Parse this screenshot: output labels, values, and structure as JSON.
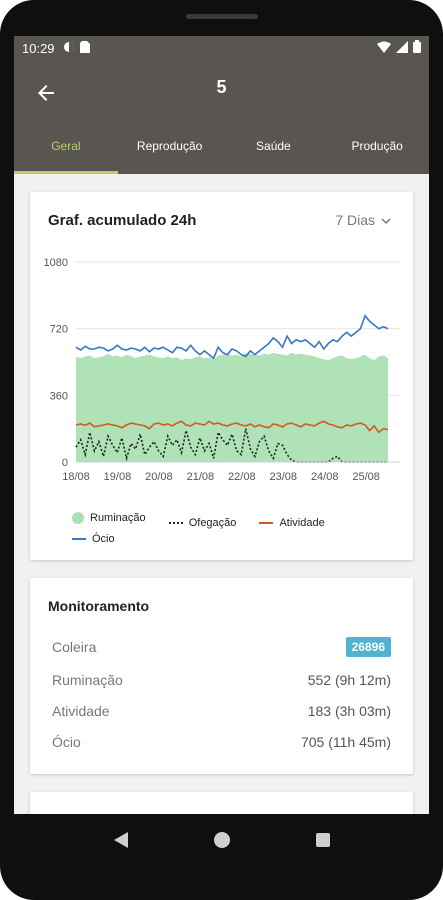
{
  "status_bar": {
    "time": "10:29"
  },
  "app_bar": {
    "title": "5"
  },
  "tabs": [
    {
      "label": "Geral",
      "active": true
    },
    {
      "label": "Reprodução",
      "active": false
    },
    {
      "label": "Saúde",
      "active": false
    },
    {
      "label": "Produção",
      "active": false
    }
  ],
  "chart_card": {
    "title": "Graf. acumulado 24h",
    "period": "7 Dias"
  },
  "chart_data": {
    "type": "area",
    "title": "Graf. acumulado 24h",
    "ylim": [
      0,
      1080
    ],
    "yticks": [
      "1080",
      "720",
      "360",
      "0"
    ],
    "xticks": [
      "18/08",
      "19/08",
      "20/08",
      "21/08",
      "22/08",
      "23/08",
      "24/08",
      "25/08"
    ],
    "grid": true,
    "legend_position": "bottom",
    "series": [
      {
        "name": "Ruminação",
        "style": "area",
        "color": "#abe0b3",
        "values": [
          570,
          560,
          570,
          575,
          560,
          565,
          570,
          585,
          570,
          575,
          565,
          580,
          570,
          560,
          570,
          575,
          580,
          570,
          565,
          560,
          570,
          560,
          565,
          550,
          560,
          555,
          565,
          570,
          560,
          565,
          555,
          575,
          580,
          585,
          575,
          580,
          570,
          590,
          585,
          580,
          575,
          585,
          580,
          590,
          585,
          580,
          575,
          590,
          580,
          585,
          580,
          575,
          570,
          560,
          555,
          550,
          560,
          570,
          575,
          560,
          555,
          560,
          570,
          580,
          560,
          550,
          570,
          575,
          560
        ]
      },
      {
        "name": "Ofegação",
        "style": "dotted",
        "color": "#222222",
        "values": [
          80,
          120,
          40,
          160,
          60,
          110,
          30,
          140,
          90,
          50,
          130,
          20,
          100,
          70,
          150,
          40,
          80,
          110,
          60,
          30,
          140,
          90,
          120,
          50,
          170,
          80,
          40,
          130,
          60,
          100,
          20,
          160,
          120,
          90,
          150,
          60,
          40,
          180,
          70,
          30,
          110,
          140,
          60,
          20,
          100,
          90,
          40,
          10,
          0,
          0,
          0,
          0,
          0,
          0,
          0,
          0,
          20,
          30,
          0,
          0,
          0,
          0,
          0,
          0,
          0,
          0,
          0,
          0,
          0
        ]
      },
      {
        "name": "Atividade",
        "style": "line",
        "color": "#d35a20",
        "values": [
          200,
          205,
          198,
          210,
          190,
          195,
          200,
          205,
          200,
          195,
          185,
          200,
          210,
          205,
          200,
          195,
          180,
          205,
          210,
          200,
          205,
          195,
          210,
          220,
          200,
          195,
          210,
          205,
          200,
          220,
          205,
          210,
          200,
          195,
          205,
          210,
          200,
          195,
          205,
          190,
          200,
          190,
          185,
          205,
          200,
          190,
          205,
          210,
          200,
          190,
          205,
          200,
          195,
          210,
          220,
          205,
          200,
          190,
          185,
          200,
          195,
          205,
          210,
          200,
          170,
          195,
          160,
          180,
          175
        ]
      },
      {
        "name": "Ócio",
        "style": "line",
        "color": "#3a76c4",
        "values": [
          620,
          605,
          625,
          610,
          610,
          620,
          615,
          600,
          610,
          630,
          610,
          605,
          615,
          610,
          600,
          620,
          595,
          615,
          610,
          620,
          605,
          590,
          620,
          615,
          600,
          630,
          600,
          580,
          600,
          580,
          560,
          620,
          590,
          580,
          610,
          600,
          580,
          570,
          600,
          580,
          600,
          620,
          640,
          670,
          650,
          620,
          680,
          640,
          660,
          650,
          660,
          640,
          620,
          650,
          610,
          640,
          660,
          650,
          680,
          700,
          680,
          700,
          720,
          790,
          760,
          740,
          720,
          730,
          720
        ]
      }
    ]
  },
  "monitoring": {
    "title": "Monitoramento",
    "rows": [
      {
        "label": "Coleira",
        "value": "26896",
        "badge": true
      },
      {
        "label": "Ruminação",
        "value": "552 (9h 12m)"
      },
      {
        "label": "Atividade",
        "value": "183 (3h 03m)"
      },
      {
        "label": "Ócio",
        "value": "705 (11h 45m)"
      }
    ]
  },
  "nav": {
    "back_icon": "triangle-back-icon",
    "home_icon": "circle-home-icon",
    "recents_icon": "square-recents-icon"
  }
}
